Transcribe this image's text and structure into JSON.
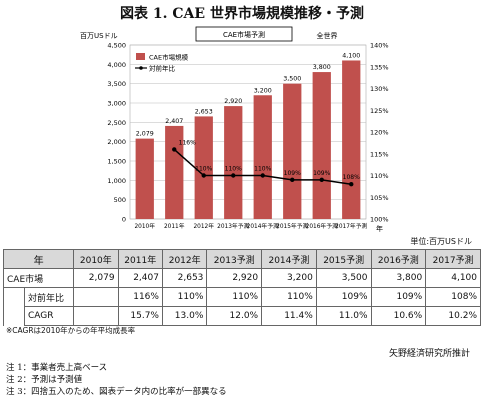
{
  "title": "図表 1. CAE 世界市場規模推移・予測",
  "chart_data": {
    "type": "bar",
    "header_box": "CAE市場予測",
    "scope": "全世界",
    "y_left_unit": "百万USドル",
    "y_right_unit": "",
    "x_unit": "年",
    "categories": [
      "2010年",
      "2011年",
      "2012年",
      "2013年予測",
      "2014年予測",
      "2015年予測",
      "2016年予測",
      "2017年予測"
    ],
    "bar_series": {
      "name": "CAE市場規模",
      "values": [
        2079,
        2407,
        2653,
        2920,
        3200,
        3500,
        3800,
        4100
      ],
      "color": "#c0504d"
    },
    "line_series": {
      "name": "対前年比",
      "values": [
        null,
        116,
        110,
        110,
        110,
        109,
        109,
        108
      ],
      "color": "#000000"
    },
    "bar_labels": [
      "2,079",
      "2,407",
      "2,653",
      "2,920",
      "3,200",
      "3,500",
      "3,800",
      "4,100"
    ],
    "line_labels": [
      "",
      "116%",
      "110%",
      "110%",
      "110%",
      "109%",
      "109%",
      "108%"
    ],
    "y_left_ticks": [
      "0",
      "500",
      "1,000",
      "1,500",
      "2,000",
      "2,500",
      "3,000",
      "3,500",
      "4,000",
      "4,500"
    ],
    "y_right_ticks": [
      "100%",
      "105%",
      "110%",
      "115%",
      "120%",
      "125%",
      "130%",
      "135%",
      "140%"
    ],
    "ylim_left": [
      0,
      4500
    ],
    "ylim_right": [
      100,
      140
    ],
    "grid": true,
    "legend_placement": "top-left"
  },
  "table": {
    "unit_note": "単位:百万USドル",
    "corner": "年",
    "headers": [
      "2010年",
      "2011年",
      "2012年",
      "2013予測",
      "2014予測",
      "2015予測",
      "2016予測",
      "2017予測"
    ],
    "rows": [
      {
        "label": "CAE市場",
        "values": [
          "2,079",
          "2,407",
          "2,653",
          "2,920",
          "3,200",
          "3,500",
          "3,800",
          "4,100"
        ]
      },
      {
        "label": "対前年比",
        "values": [
          "",
          "116%",
          "110%",
          "110%",
          "110%",
          "109%",
          "109%",
          "108%"
        ]
      },
      {
        "label": "CAGR",
        "values": [
          "",
          "15.7%",
          "13.0%",
          "12.0%",
          "11.4%",
          "11.0%",
          "10.6%",
          "10.2%"
        ]
      }
    ]
  },
  "cagr_note": "※CAGRは2010年からの年平均成長率",
  "source": "矢野経済研究所推計",
  "notes": [
    "注 1：事業者売上高ベース",
    "注 2：予測は予測値",
    "注 3：四捨五入のため、図表データ内の比率が一部異なる"
  ]
}
